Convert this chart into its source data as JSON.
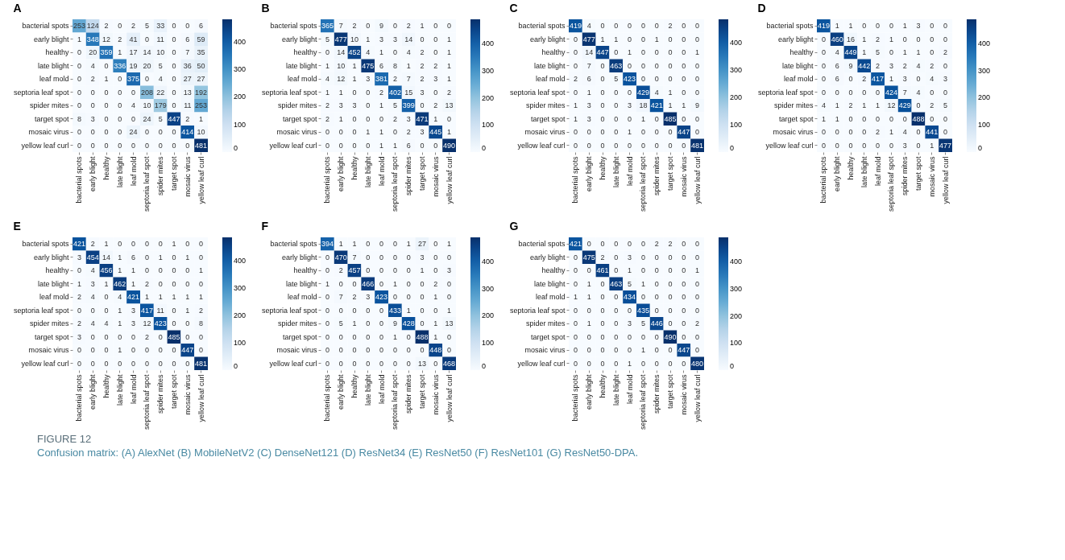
{
  "chart_data": [
    {
      "type": "heatmap",
      "title": "A",
      "categories": [
        "bacterial spots",
        "early blight",
        "healthy",
        "late blight",
        "leaf mold",
        "septoria leaf spot",
        "spider mites",
        "target spot",
        "mosaic virus",
        "yellow leaf curl"
      ],
      "y_categories": [
        "bacterial spots",
        "early blight",
        "healthy",
        "late blight",
        "leaf mold",
        "septoria leaf spot",
        "spider mites",
        "target spot",
        "mosaic virus",
        "yellow leaf curl"
      ],
      "cells": [
        [
          253,
          124,
          2,
          0,
          2,
          5,
          33,
          0,
          0,
          6
        ],
        [
          1,
          348,
          12,
          2,
          41,
          0,
          11,
          0,
          6,
          59
        ],
        [
          0,
          20,
          359,
          1,
          17,
          14,
          10,
          0,
          7,
          35
        ],
        [
          0,
          4,
          0,
          336,
          19,
          20,
          5,
          0,
          36,
          50
        ],
        [
          0,
          2,
          1,
          0,
          375,
          0,
          4,
          0,
          27,
          27
        ],
        [
          0,
          0,
          0,
          0,
          0,
          208,
          22,
          0,
          13,
          192
        ],
        [
          0,
          0,
          0,
          0,
          4,
          10,
          179,
          0,
          11,
          253
        ],
        [
          8,
          3,
          0,
          0,
          0,
          24,
          5,
          447,
          2,
          1
        ],
        [
          0,
          0,
          0,
          0,
          24,
          0,
          0,
          0,
          414,
          10
        ],
        [
          0,
          0,
          0,
          0,
          0,
          0,
          0,
          0,
          0,
          481
        ]
      ],
      "clim": [
        0,
        481
      ],
      "cticks": [
        0,
        100,
        200,
        300,
        400
      ],
      "data_labels": true,
      "annotations": [
        "FIGURE 12",
        "Confusion matrix: (A) AlexNet (B) MobileNetV2 (C) DenseNet121 (D) ResNet34 (E) ResNet50 (F) ResNet101 (G) ResNet50-DPA."
      ]
    },
    {
      "type": "heatmap",
      "title": "B",
      "categories": [
        "bacterial spots",
        "early blight",
        "healthy",
        "late blight",
        "leaf mold",
        "septoria leaf spot",
        "spider mites",
        "target spot",
        "mosaic virus",
        "yellow leaf curl"
      ],
      "y_categories": [
        "bacterial spots",
        "early blight",
        "healthy",
        "late blight",
        "leaf mold",
        "septoria leaf spot",
        "spider mites",
        "target spot",
        "mosaic virus",
        "yellow leaf curl"
      ],
      "cells": [
        [
          365,
          7,
          2,
          0,
          9,
          0,
          2,
          1,
          0,
          0
        ],
        [
          5,
          477,
          10,
          1,
          3,
          3,
          14,
          0,
          0,
          1
        ],
        [
          0,
          14,
          452,
          4,
          1,
          0,
          4,
          2,
          0,
          1
        ],
        [
          1,
          10,
          1,
          475,
          6,
          8,
          1,
          2,
          2,
          1
        ],
        [
          4,
          12,
          1,
          3,
          381,
          2,
          7,
          2,
          3,
          1
        ],
        [
          1,
          1,
          0,
          0,
          2,
          402,
          15,
          3,
          0,
          2
        ],
        [
          2,
          3,
          3,
          0,
          1,
          5,
          399,
          0,
          2,
          13
        ],
        [
          2,
          1,
          0,
          0,
          0,
          2,
          3,
          471,
          1,
          0
        ],
        [
          0,
          0,
          0,
          1,
          1,
          0,
          2,
          3,
          445,
          1
        ],
        [
          0,
          0,
          0,
          0,
          1,
          1,
          6,
          0,
          0,
          490
        ]
      ],
      "clim": [
        0,
        490
      ],
      "cticks": [
        0,
        100,
        200,
        300,
        400
      ],
      "data_labels": true
    },
    {
      "type": "heatmap",
      "title": "C",
      "categories": [
        "bacterial spots",
        "early blight",
        "healthy",
        "late blight",
        "leaf mold",
        "septoria leaf spot",
        "spider mites",
        "target spot",
        "mosaic virus",
        "yellow leaf curl"
      ],
      "y_categories": [
        "bacterial spots",
        "early blight",
        "healthy",
        "late blight",
        "leaf mold",
        "septoria leaf spot",
        "spider mites",
        "target spot",
        "mosaic virus",
        "yellow leaf curl"
      ],
      "cells": [
        [
          419,
          4,
          0,
          0,
          0,
          0,
          0,
          2,
          0,
          0
        ],
        [
          0,
          477,
          1,
          1,
          0,
          0,
          1,
          0,
          0,
          0
        ],
        [
          0,
          14,
          447,
          0,
          1,
          0,
          0,
          0,
          0,
          1
        ],
        [
          0,
          7,
          0,
          463,
          0,
          0,
          0,
          0,
          0,
          0
        ],
        [
          2,
          6,
          0,
          5,
          423,
          0,
          0,
          0,
          0,
          0
        ],
        [
          0,
          1,
          0,
          0,
          0,
          429,
          4,
          1,
          0,
          0
        ],
        [
          1,
          3,
          0,
          0,
          3,
          18,
          421,
          1,
          1,
          9
        ],
        [
          1,
          3,
          0,
          0,
          0,
          1,
          0,
          485,
          0,
          0
        ],
        [
          0,
          0,
          0,
          0,
          1,
          0,
          0,
          0,
          447,
          0
        ],
        [
          0,
          0,
          0,
          0,
          0,
          0,
          0,
          0,
          0,
          481
        ]
      ],
      "clim": [
        0,
        485
      ],
      "cticks": [
        0,
        100,
        200,
        300,
        400
      ],
      "data_labels": true
    },
    {
      "type": "heatmap",
      "title": "D",
      "categories": [
        "bacterial spots",
        "early blight",
        "healthy",
        "late blight",
        "leaf mold",
        "septoria leaf spot",
        "spider mites",
        "target spot",
        "mosaic virus",
        "yellow leaf curl"
      ],
      "y_categories": [
        "bacterial spots",
        "early blight",
        "healthy",
        "late blight",
        "leaf mold",
        "septoria leaf spot",
        "spider mites",
        "target spot",
        "mosaic virus",
        "yellow leaf curl"
      ],
      "cells": [
        [
          419,
          1,
          1,
          0,
          0,
          0,
          1,
          3,
          0,
          0
        ],
        [
          0,
          460,
          16,
          1,
          2,
          1,
          0,
          0,
          0,
          0
        ],
        [
          0,
          4,
          449,
          1,
          5,
          0,
          1,
          1,
          0,
          2
        ],
        [
          0,
          6,
          9,
          442,
          2,
          3,
          2,
          4,
          2,
          0
        ],
        [
          0,
          6,
          0,
          2,
          417,
          1,
          3,
          0,
          4,
          3
        ],
        [
          0,
          0,
          0,
          0,
          0,
          424,
          7,
          4,
          0,
          0
        ],
        [
          4,
          1,
          2,
          1,
          1,
          12,
          429,
          0,
          2,
          5
        ],
        [
          1,
          1,
          0,
          0,
          0,
          0,
          0,
          488,
          0,
          0
        ],
        [
          0,
          0,
          0,
          0,
          2,
          1,
          4,
          0,
          441,
          0
        ],
        [
          0,
          0,
          0,
          0,
          0,
          0,
          3,
          0,
          1,
          477
        ]
      ],
      "clim": [
        0,
        488
      ],
      "cticks": [
        0,
        100,
        200,
        300,
        400
      ],
      "data_labels": true
    },
    {
      "type": "heatmap",
      "title": "E",
      "categories": [
        "bacterial spots",
        "early blight",
        "healthy",
        "late blight",
        "leaf mold",
        "septoria leaf spot",
        "spider mites",
        "target spot",
        "mosaic virus",
        "yellow leaf curl"
      ],
      "y_categories": [
        "bacterial spots",
        "early blight",
        "healthy",
        "late blight",
        "leaf mold",
        "septoria leaf spot",
        "spider mites",
        "target spot",
        "mosaic virus",
        "yellow leaf curl"
      ],
      "cells": [
        [
          421,
          2,
          1,
          0,
          0,
          0,
          0,
          1,
          0,
          0
        ],
        [
          3,
          454,
          14,
          1,
          6,
          0,
          1,
          0,
          1,
          0
        ],
        [
          0,
          4,
          456,
          1,
          1,
          0,
          0,
          0,
          0,
          1
        ],
        [
          1,
          3,
          1,
          462,
          1,
          2,
          0,
          0,
          0,
          0
        ],
        [
          2,
          4,
          0,
          4,
          421,
          1,
          1,
          1,
          1,
          1
        ],
        [
          0,
          0,
          0,
          1,
          3,
          417,
          11,
          0,
          1,
          2
        ],
        [
          2,
          4,
          4,
          1,
          3,
          12,
          423,
          0,
          0,
          8
        ],
        [
          3,
          0,
          0,
          0,
          0,
          2,
          0,
          485,
          0,
          0
        ],
        [
          0,
          0,
          0,
          1,
          0,
          0,
          0,
          0,
          447,
          0
        ],
        [
          0,
          0,
          0,
          0,
          0,
          0,
          0,
          0,
          0,
          481
        ]
      ],
      "clim": [
        0,
        485
      ],
      "cticks": [
        0,
        100,
        200,
        300,
        400
      ],
      "data_labels": true
    },
    {
      "type": "heatmap",
      "title": "F",
      "categories": [
        "bacterial spots",
        "early blight",
        "healthy",
        "late blight",
        "leaf mold",
        "septoria leaf spot",
        "spider mites",
        "target spot",
        "mosaic virus",
        "yellow leaf curl"
      ],
      "y_categories": [
        "bacterial spots",
        "early blight",
        "healthy",
        "late blight",
        "leaf mold",
        "septoria leaf spot",
        "spider mites",
        "target spot",
        "mosaic virus",
        "yellow leaf curl"
      ],
      "cells": [
        [
          394,
          1,
          1,
          0,
          0,
          0,
          1,
          27,
          0,
          1
        ],
        [
          0,
          470,
          7,
          0,
          0,
          0,
          0,
          3,
          0,
          0
        ],
        [
          0,
          2,
          457,
          0,
          0,
          0,
          0,
          1,
          0,
          3
        ],
        [
          1,
          0,
          0,
          466,
          0,
          1,
          0,
          0,
          2,
          0
        ],
        [
          0,
          7,
          2,
          3,
          423,
          0,
          0,
          0,
          1,
          0
        ],
        [
          0,
          0,
          0,
          0,
          0,
          433,
          1,
          0,
          0,
          1
        ],
        [
          0,
          5,
          1,
          0,
          0,
          9,
          428,
          0,
          1,
          13
        ],
        [
          0,
          0,
          0,
          0,
          0,
          1,
          0,
          488,
          1,
          0
        ],
        [
          0,
          0,
          0,
          0,
          0,
          0,
          0,
          0,
          448,
          0
        ],
        [
          0,
          0,
          0,
          0,
          0,
          0,
          0,
          13,
          0,
          468
        ]
      ],
      "clim": [
        0,
        488
      ],
      "cticks": [
        0,
        100,
        200,
        300,
        400
      ],
      "data_labels": true
    },
    {
      "type": "heatmap",
      "title": "G",
      "categories": [
        "bacterial spots",
        "early blight",
        "healthy",
        "late blight",
        "leaf mold",
        "septoria leaf spot",
        "spider mites",
        "target spot",
        "mosaic virus",
        "yellow leaf curl"
      ],
      "y_categories": [
        "bacterial spots",
        "early blight",
        "healthy",
        "late blight",
        "leaf mold",
        "septoria leaf spot",
        "spider mites",
        "target spot",
        "mosaic virus",
        "yellow leaf curl"
      ],
      "cells": [
        [
          421,
          0,
          0,
          0,
          0,
          0,
          2,
          2,
          0,
          0
        ],
        [
          0,
          475,
          2,
          0,
          3,
          0,
          0,
          0,
          0,
          0
        ],
        [
          0,
          0,
          461,
          0,
          1,
          0,
          0,
          0,
          0,
          1
        ],
        [
          0,
          1,
          0,
          463,
          5,
          1,
          0,
          0,
          0,
          0
        ],
        [
          1,
          1,
          0,
          0,
          434,
          0,
          0,
          0,
          0,
          0
        ],
        [
          0,
          0,
          0,
          0,
          0,
          435,
          0,
          0,
          0,
          0
        ],
        [
          0,
          1,
          0,
          0,
          3,
          5,
          446,
          0,
          0,
          2
        ],
        [
          0,
          0,
          0,
          0,
          0,
          0,
          0,
          490,
          0,
          0
        ],
        [
          0,
          0,
          0,
          0,
          0,
          1,
          0,
          0,
          447,
          0
        ],
        [
          0,
          0,
          0,
          0,
          1,
          0,
          0,
          0,
          0,
          480
        ]
      ],
      "clim": [
        0,
        490
      ],
      "cticks": [
        0,
        100,
        200,
        300,
        400
      ],
      "data_labels": true
    }
  ]
}
